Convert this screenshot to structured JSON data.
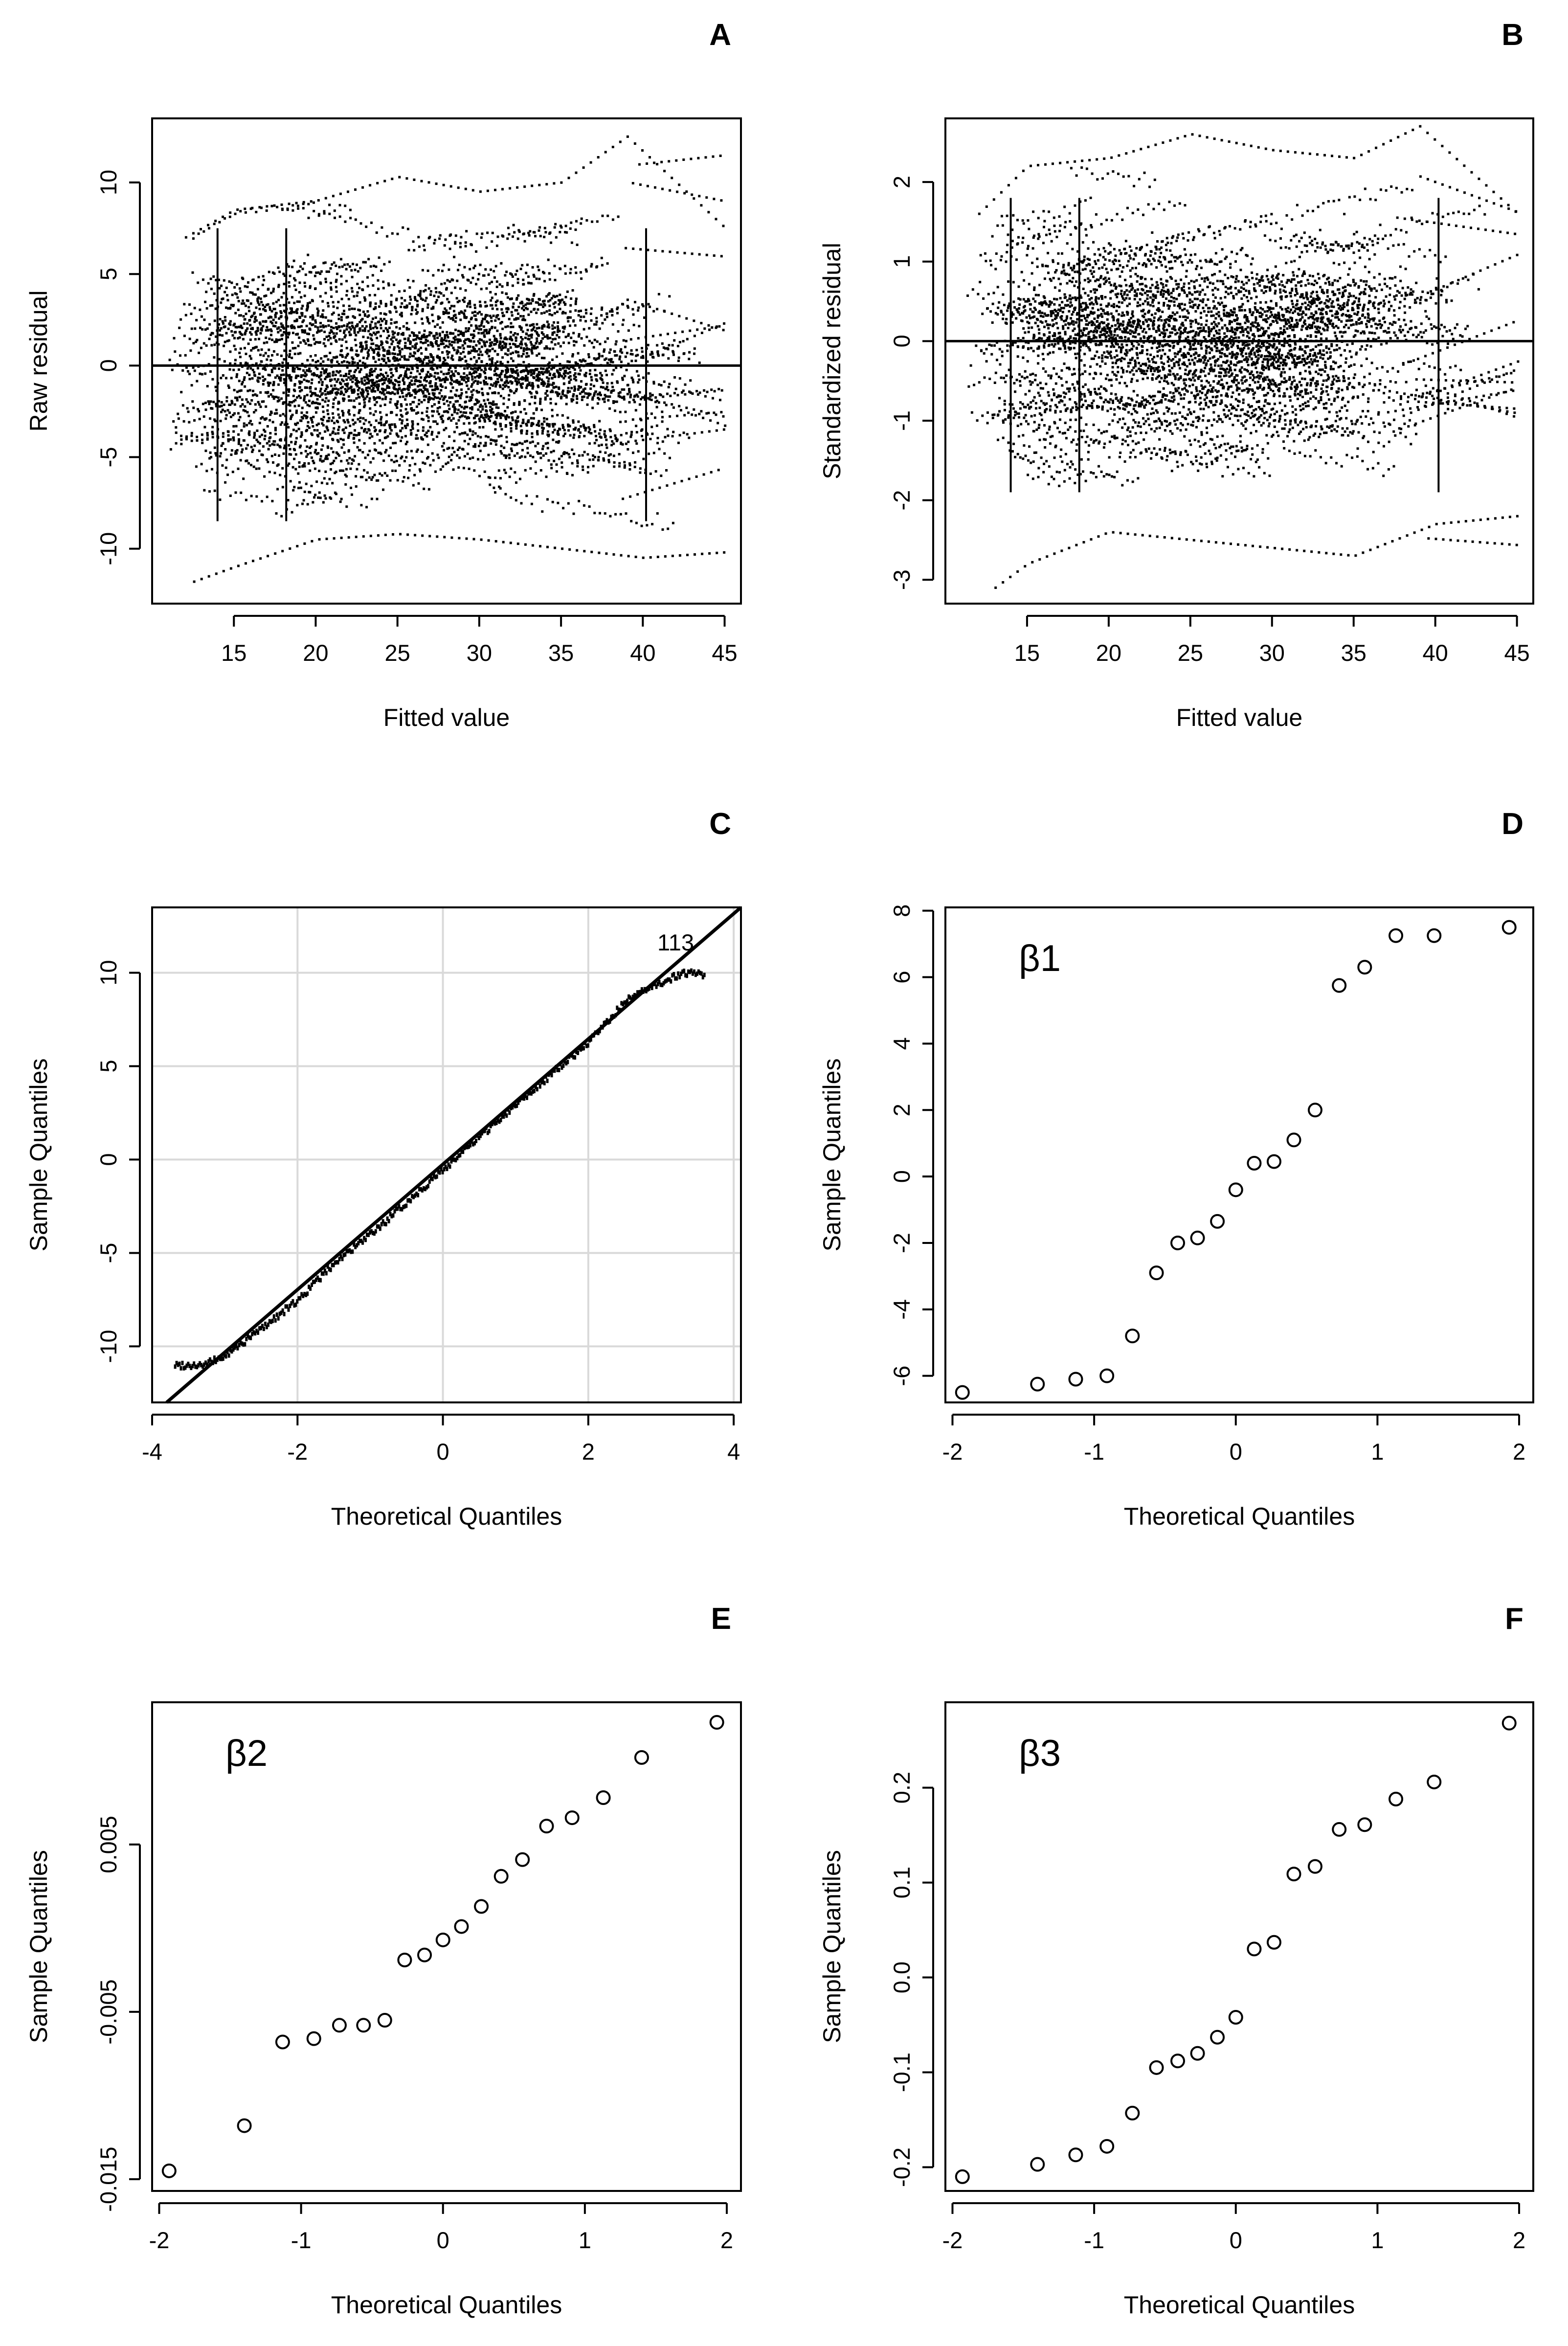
{
  "chart_data": [
    {
      "panel": "A",
      "type": "scatter",
      "xlabel": "Fitted value",
      "ylabel": "Raw residual",
      "xlim": [
        10,
        46
      ],
      "ylim": [
        -13,
        13.5
      ],
      "xticks": [
        15,
        20,
        25,
        30,
        35,
        40,
        45
      ],
      "yticks": [
        -10,
        -5,
        0,
        5,
        10
      ],
      "hline": 0,
      "description": "Dense dotted residual traces for many subjects; residuals roughly symmetric about 0, spanning about -12 to 12.5",
      "series": [
        {
          "name": "residual envelope (upper)",
          "x": [
            12,
            15,
            20,
            25,
            30,
            35,
            39,
            45
          ],
          "y": [
            7,
            8.5,
            9,
            10.3,
            9.5,
            10,
            12.5,
            7.5
          ]
        },
        {
          "name": "residual envelope (lower)",
          "x": [
            12.5,
            15,
            20,
            25,
            30,
            35,
            40,
            45
          ],
          "y": [
            -11.8,
            -11,
            -9.5,
            -9.2,
            -9.5,
            -10,
            -10.5,
            -10.2
          ]
        }
      ]
    },
    {
      "panel": "B",
      "type": "scatter",
      "xlabel": "Fitted value",
      "ylabel": "Standardized residual",
      "xlim": [
        10,
        46
      ],
      "ylim": [
        -3.3,
        2.8
      ],
      "xticks": [
        15,
        20,
        25,
        30,
        35,
        40,
        45
      ],
      "yticks": [
        -3,
        -2,
        -1,
        0,
        1,
        2
      ],
      "hline": 0,
      "description": "Standardized residual traces symmetric about 0, spanning about -3.1 to 2.7",
      "series": [
        {
          "name": "residual envelope (upper)",
          "x": [
            12,
            15,
            20,
            25,
            30,
            35,
            39,
            45
          ],
          "y": [
            1.6,
            2.2,
            2.3,
            2.6,
            2.4,
            2.3,
            2.7,
            1.6
          ]
        },
        {
          "name": "residual envelope (lower)",
          "x": [
            13,
            15,
            20,
            25,
            30,
            35,
            40,
            45
          ],
          "y": [
            -3.1,
            -2.8,
            -2.4,
            -2.5,
            -2.6,
            -2.7,
            -2.3,
            -2.2
          ]
        }
      ]
    },
    {
      "panel": "C",
      "type": "scatter",
      "xlabel": "Theoretical Quantiles",
      "ylabel": "Sample Quantiles",
      "xlim": [
        -4,
        4.1
      ],
      "ylim": [
        -13,
        13.5
      ],
      "xticks": [
        -4,
        -2,
        0,
        2,
        4
      ],
      "yticks": [
        -10,
        -5,
        0,
        5,
        10
      ],
      "grid": true,
      "annotation": "113",
      "description": "Normal Q-Q plot of residuals with reference line; points follow the line with slight deviations in the tails",
      "series": [
        {
          "name": "reference line",
          "x": [
            -3.8,
            4.1
          ],
          "y": [
            -13,
            13.5
          ]
        },
        {
          "name": "residual quantiles",
          "x": [
            -3.7,
            -3.3,
            -3,
            -2.5,
            -2,
            -1.5,
            -1,
            0,
            1,
            2,
            2.5,
            3,
            3.3,
            3.6
          ],
          "y": [
            -11,
            -11,
            -10.5,
            -9,
            -7.5,
            -5.5,
            -4,
            -0.5,
            3,
            6.3,
            8.5,
            9.5,
            10,
            9.9
          ]
        }
      ]
    },
    {
      "panel": "D",
      "type": "scatter",
      "title": "β1",
      "xlabel": "Theoretical Quantiles",
      "ylabel": "Sample Quantiles",
      "xlim": [
        -2.05,
        2.1
      ],
      "ylim": [
        -6.8,
        8.1
      ],
      "xticks": [
        -2,
        -1,
        0,
        1,
        2
      ],
      "yticks": [
        -6,
        -4,
        -2,
        0,
        2,
        4,
        6,
        8
      ],
      "x": [
        -1.93,
        -1.4,
        -1.13,
        -0.91,
        -0.73,
        -0.56,
        -0.41,
        -0.27,
        -0.13,
        0,
        0.13,
        0.27,
        0.41,
        0.56,
        0.73,
        0.91,
        1.13,
        1.4,
        1.93
      ],
      "y": [
        -6.5,
        -6.25,
        -6.1,
        -6.0,
        -4.8,
        -2.9,
        -2.0,
        -1.85,
        -1.35,
        -0.4,
        0.4,
        0.45,
        1.1,
        2.0,
        5.75,
        6.3,
        7.25,
        7.25,
        7.5
      ]
    },
    {
      "panel": "E",
      "type": "scatter",
      "title": "β2",
      "xlabel": "Theoretical Quantiles",
      "ylabel": "Sample Quantiles",
      "xlim": [
        -2.05,
        2.1
      ],
      "ylim": [
        -0.0157,
        0.0135
      ],
      "xticks": [
        -2,
        -1,
        0,
        1,
        2
      ],
      "yticks": [
        -0.015,
        -0.005,
        0.005
      ],
      "ytick_labels": [
        "-0.015",
        "-0.005",
        "0.005"
      ],
      "x": [
        -1.93,
        -1.4,
        -1.13,
        -0.91,
        -0.73,
        -0.56,
        -0.41,
        -0.27,
        -0.13,
        0,
        0.13,
        0.27,
        0.41,
        0.56,
        0.73,
        0.91,
        1.13,
        1.4,
        1.93
      ],
      "y": [
        -0.0145,
        -0.0118,
        -0.0068,
        -0.0066,
        -0.0058,
        -0.0058,
        -0.0055,
        -0.0019,
        -0.0016,
        -0.0007,
        0.0001,
        0.0013,
        0.0031,
        0.0041,
        0.0061,
        0.0066,
        0.0078,
        0.0102,
        0.0123
      ]
    },
    {
      "panel": "F",
      "type": "scatter",
      "title": "β3",
      "xlabel": "Theoretical Quantiles",
      "ylabel": "Sample Quantiles",
      "xlim": [
        -2.05,
        2.1
      ],
      "ylim": [
        -0.225,
        0.29
      ],
      "xticks": [
        -2,
        -1,
        0,
        1,
        2
      ],
      "yticks": [
        -0.2,
        -0.1,
        0.0,
        0.1,
        0.2
      ],
      "ytick_labels": [
        "-0.2",
        "-0.1",
        "0.0",
        "0.1",
        "0.2"
      ],
      "x": [
        -1.93,
        -1.4,
        -1.13,
        -0.91,
        -0.73,
        -0.56,
        -0.41,
        -0.27,
        -0.13,
        0,
        0.13,
        0.27,
        0.41,
        0.56,
        0.73,
        0.91,
        1.13,
        1.4,
        1.93
      ],
      "y": [
        -0.21,
        -0.197,
        -0.187,
        -0.178,
        -0.143,
        -0.095,
        -0.088,
        -0.08,
        -0.063,
        -0.042,
        0.03,
        0.037,
        0.109,
        0.117,
        0.156,
        0.161,
        0.188,
        0.206,
        0.268
      ]
    }
  ]
}
